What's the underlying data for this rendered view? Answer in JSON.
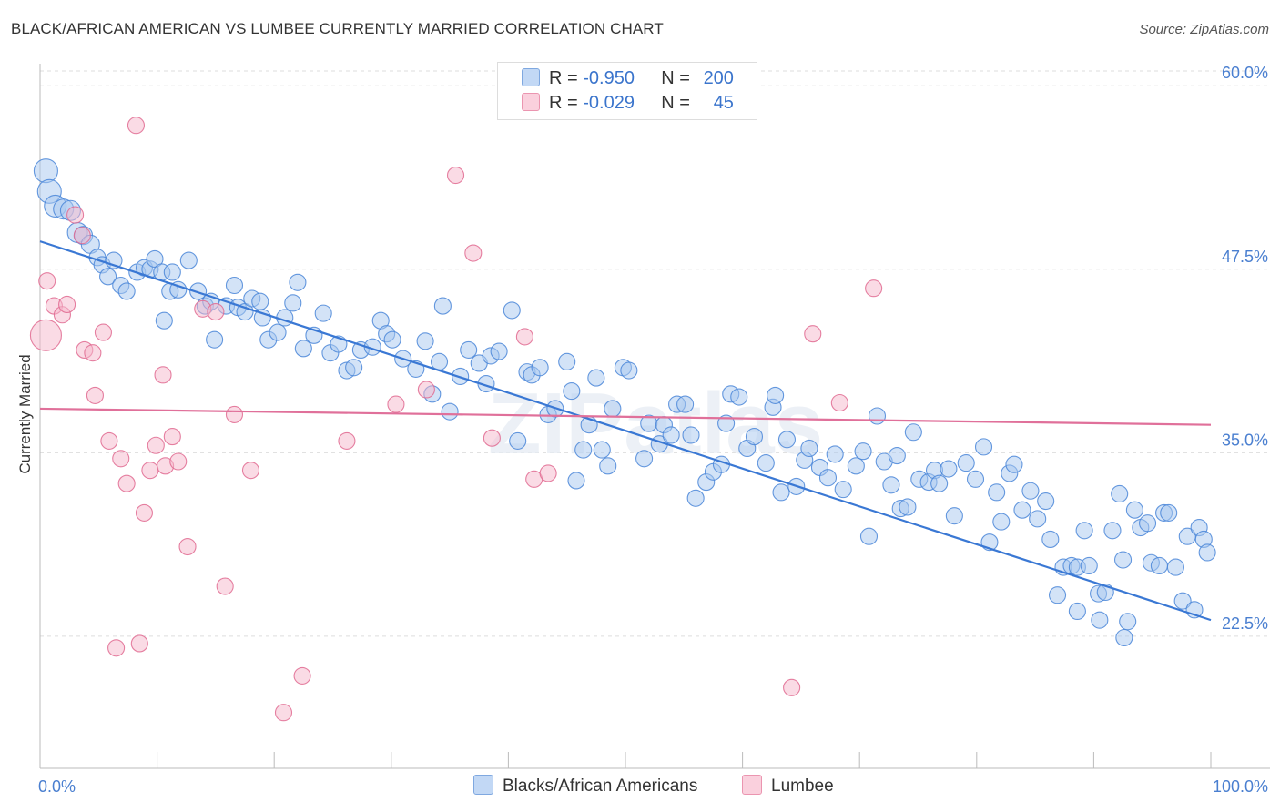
{
  "title": "BLACK/AFRICAN AMERICAN VS LUMBEE CURRENTLY MARRIED CORRELATION CHART",
  "source": "Source: ZipAtlas.com",
  "watermark": "ZIPatlas",
  "legend": {
    "rows": [
      {
        "r_label": "R =",
        "r_value": "-0.950",
        "n_label": "N =",
        "n_value": "200",
        "color": "#a8c8f0"
      },
      {
        "r_label": "R =",
        "r_value": "-0.029",
        "n_label": "N =",
        "n_value": "45",
        "color": "#f5b8cb"
      }
    ],
    "bottom": [
      {
        "label": "Blacks/African Americans",
        "color": "#a8c8f0"
      },
      {
        "label": "Lumbee",
        "color": "#f5b8cb"
      }
    ]
  },
  "chart_data": {
    "type": "scatter",
    "title": "BLACK/AFRICAN AMERICAN VS LUMBEE CURRENTLY MARRIED CORRELATION CHART",
    "xlabel": "",
    "ylabel": "Currently Married",
    "xlim": [
      0,
      100
    ],
    "ylim": [
      13.5,
      61.5
    ],
    "x_tick_labels": [
      "0.0%",
      "100.0%"
    ],
    "y_ticks": [
      22.5,
      35.0,
      47.5,
      60.0
    ],
    "y_tick_labels": [
      "22.5%",
      "35.0%",
      "47.5%",
      "60.0%"
    ],
    "grid": "horizontal dashed",
    "series": [
      {
        "name": "Blacks/African Americans",
        "color": "#4a86d8",
        "fill": "#a8c8f0",
        "trend": {
          "x": [
            0,
            100
          ],
          "y": [
            49.4,
            23.6
          ]
        },
        "points": [
          [
            0.5,
            54.2
          ],
          [
            0.8,
            52.8
          ],
          [
            1.3,
            51.8
          ],
          [
            2.0,
            51.6
          ],
          [
            2.6,
            51.5
          ],
          [
            3.2,
            50.0
          ],
          [
            3.7,
            49.8
          ],
          [
            4.3,
            49.2
          ],
          [
            4.9,
            48.3
          ],
          [
            5.3,
            47.8
          ],
          [
            5.8,
            47.0
          ],
          [
            6.3,
            48.1
          ],
          [
            6.9,
            46.4
          ],
          [
            7.4,
            46.0
          ],
          [
            8.3,
            47.3
          ],
          [
            8.9,
            47.6
          ],
          [
            9.4,
            47.5
          ],
          [
            9.8,
            48.2
          ],
          [
            10.4,
            47.3
          ],
          [
            10.6,
            44.0
          ],
          [
            11.1,
            46.0
          ],
          [
            11.3,
            47.3
          ],
          [
            11.8,
            46.1
          ],
          [
            12.7,
            48.1
          ],
          [
            13.5,
            46.0
          ],
          [
            14.1,
            45.0
          ],
          [
            14.6,
            45.3
          ],
          [
            14.9,
            42.7
          ],
          [
            15.9,
            45.0
          ],
          [
            16.6,
            46.4
          ],
          [
            16.9,
            44.9
          ],
          [
            17.5,
            44.6
          ],
          [
            18.1,
            45.5
          ],
          [
            18.8,
            45.3
          ],
          [
            19.0,
            44.2
          ],
          [
            19.5,
            42.7
          ],
          [
            20.3,
            43.2
          ],
          [
            20.9,
            44.2
          ],
          [
            21.6,
            45.2
          ],
          [
            22.0,
            46.6
          ],
          [
            22.5,
            42.1
          ],
          [
            23.4,
            43.0
          ],
          [
            24.2,
            44.5
          ],
          [
            24.8,
            41.8
          ],
          [
            25.5,
            42.4
          ],
          [
            26.2,
            40.6
          ],
          [
            26.8,
            40.8
          ],
          [
            27.4,
            42.0
          ],
          [
            28.4,
            42.2
          ],
          [
            29.1,
            44.0
          ],
          [
            29.6,
            43.1
          ],
          [
            30.1,
            42.7
          ],
          [
            31.0,
            41.4
          ],
          [
            32.1,
            40.7
          ],
          [
            32.9,
            42.6
          ],
          [
            33.5,
            39.0
          ],
          [
            34.1,
            41.2
          ],
          [
            34.4,
            45.0
          ],
          [
            35.0,
            37.8
          ],
          [
            35.9,
            40.2
          ],
          [
            36.6,
            42.0
          ],
          [
            37.5,
            41.1
          ],
          [
            38.1,
            39.7
          ],
          [
            38.5,
            41.6
          ],
          [
            39.2,
            41.9
          ],
          [
            40.3,
            44.7
          ],
          [
            40.8,
            35.8
          ],
          [
            41.6,
            40.5
          ],
          [
            42.0,
            40.3
          ],
          [
            42.7,
            40.8
          ],
          [
            43.4,
            37.6
          ],
          [
            44.0,
            38.0
          ],
          [
            45.0,
            41.2
          ],
          [
            45.4,
            39.2
          ],
          [
            45.8,
            33.1
          ],
          [
            46.4,
            35.2
          ],
          [
            46.9,
            36.9
          ],
          [
            47.5,
            40.1
          ],
          [
            48.0,
            35.2
          ],
          [
            48.5,
            34.1
          ],
          [
            48.9,
            38.0
          ],
          [
            49.8,
            40.8
          ],
          [
            50.3,
            40.6
          ],
          [
            51.6,
            34.6
          ],
          [
            52.0,
            37.0
          ],
          [
            52.9,
            35.6
          ],
          [
            53.3,
            36.9
          ],
          [
            53.9,
            36.2
          ],
          [
            54.4,
            38.3
          ],
          [
            55.1,
            38.3
          ],
          [
            55.6,
            36.2
          ],
          [
            56.0,
            31.9
          ],
          [
            56.9,
            33.0
          ],
          [
            57.5,
            33.7
          ],
          [
            58.2,
            34.2
          ],
          [
            58.6,
            37.0
          ],
          [
            59.0,
            39.0
          ],
          [
            59.7,
            38.8
          ],
          [
            60.4,
            35.3
          ],
          [
            61.0,
            36.1
          ],
          [
            62.0,
            34.3
          ],
          [
            62.6,
            38.1
          ],
          [
            62.8,
            38.9
          ],
          [
            63.3,
            32.3
          ],
          [
            63.8,
            35.9
          ],
          [
            64.6,
            32.7
          ],
          [
            65.3,
            34.5
          ],
          [
            65.7,
            35.3
          ],
          [
            66.6,
            34.0
          ],
          [
            67.3,
            33.3
          ],
          [
            67.9,
            34.9
          ],
          [
            68.6,
            32.5
          ],
          [
            69.7,
            34.1
          ],
          [
            70.3,
            35.1
          ],
          [
            70.8,
            29.3
          ],
          [
            71.5,
            37.5
          ],
          [
            72.1,
            34.4
          ],
          [
            72.7,
            32.8
          ],
          [
            73.2,
            34.8
          ],
          [
            73.5,
            31.2
          ],
          [
            74.1,
            31.3
          ],
          [
            74.6,
            36.4
          ],
          [
            75.1,
            33.2
          ],
          [
            75.9,
            33.0
          ],
          [
            76.4,
            33.8
          ],
          [
            76.8,
            32.9
          ],
          [
            77.6,
            33.9
          ],
          [
            78.1,
            30.7
          ],
          [
            79.1,
            34.3
          ],
          [
            79.9,
            33.2
          ],
          [
            80.6,
            35.4
          ],
          [
            81.1,
            28.9
          ],
          [
            81.7,
            32.3
          ],
          [
            82.1,
            30.3
          ],
          [
            82.8,
            33.6
          ],
          [
            83.2,
            34.2
          ],
          [
            83.9,
            31.1
          ],
          [
            84.6,
            32.4
          ],
          [
            85.2,
            30.5
          ],
          [
            85.9,
            31.7
          ],
          [
            86.3,
            29.1
          ],
          [
            86.9,
            25.3
          ],
          [
            87.4,
            27.2
          ],
          [
            88.1,
            27.3
          ],
          [
            88.6,
            27.2
          ],
          [
            89.2,
            29.7
          ],
          [
            89.6,
            27.3
          ],
          [
            90.4,
            25.4
          ],
          [
            91.0,
            25.5
          ],
          [
            91.6,
            29.7
          ],
          [
            92.2,
            32.2
          ],
          [
            92.5,
            27.7
          ],
          [
            92.9,
            23.5
          ],
          [
            93.5,
            31.1
          ],
          [
            94.0,
            29.9
          ],
          [
            94.6,
            30.2
          ],
          [
            94.9,
            27.5
          ],
          [
            95.6,
            27.3
          ],
          [
            96.0,
            30.9
          ],
          [
            96.4,
            30.9
          ],
          [
            97.0,
            27.2
          ],
          [
            97.6,
            24.9
          ],
          [
            98.0,
            29.3
          ],
          [
            98.6,
            24.3
          ],
          [
            99.0,
            29.9
          ],
          [
            99.4,
            29.1
          ],
          [
            99.7,
            28.2
          ],
          [
            88.6,
            24.2
          ],
          [
            90.5,
            23.6
          ],
          [
            92.6,
            22.4
          ]
        ]
      },
      {
        "name": "Lumbee",
        "color": "#e06a90",
        "fill": "#f5b8cb",
        "trend": {
          "x": [
            0,
            100
          ],
          "y": [
            38.0,
            36.9
          ]
        },
        "points": [
          [
            0.5,
            43.0
          ],
          [
            0.6,
            46.7
          ],
          [
            1.2,
            45.0
          ],
          [
            1.9,
            44.4
          ],
          [
            2.3,
            45.1
          ],
          [
            3.0,
            51.2
          ],
          [
            3.6,
            49.8
          ],
          [
            3.8,
            42.0
          ],
          [
            4.5,
            41.8
          ],
          [
            4.7,
            38.9
          ],
          [
            5.4,
            43.2
          ],
          [
            5.9,
            35.8
          ],
          [
            6.5,
            21.7
          ],
          [
            6.9,
            34.6
          ],
          [
            7.4,
            32.9
          ],
          [
            8.2,
            57.3
          ],
          [
            8.5,
            22.0
          ],
          [
            8.9,
            30.9
          ],
          [
            9.4,
            33.8
          ],
          [
            9.9,
            35.5
          ],
          [
            10.5,
            40.3
          ],
          [
            10.7,
            34.1
          ],
          [
            11.3,
            36.1
          ],
          [
            11.8,
            34.4
          ],
          [
            12.6,
            28.6
          ],
          [
            13.9,
            44.8
          ],
          [
            15.0,
            44.6
          ],
          [
            15.8,
            25.9
          ],
          [
            16.6,
            37.6
          ],
          [
            18.0,
            33.8
          ],
          [
            20.8,
            17.3
          ],
          [
            22.4,
            19.8
          ],
          [
            26.2,
            35.8
          ],
          [
            30.4,
            38.3
          ],
          [
            33.0,
            39.3
          ],
          [
            35.5,
            53.9
          ],
          [
            37.0,
            48.6
          ],
          [
            38.6,
            36.0
          ],
          [
            41.4,
            42.9
          ],
          [
            42.2,
            33.2
          ],
          [
            43.4,
            33.6
          ],
          [
            64.2,
            19.0
          ],
          [
            66.0,
            43.1
          ],
          [
            68.3,
            38.4
          ],
          [
            71.2,
            46.2
          ]
        ]
      }
    ]
  }
}
